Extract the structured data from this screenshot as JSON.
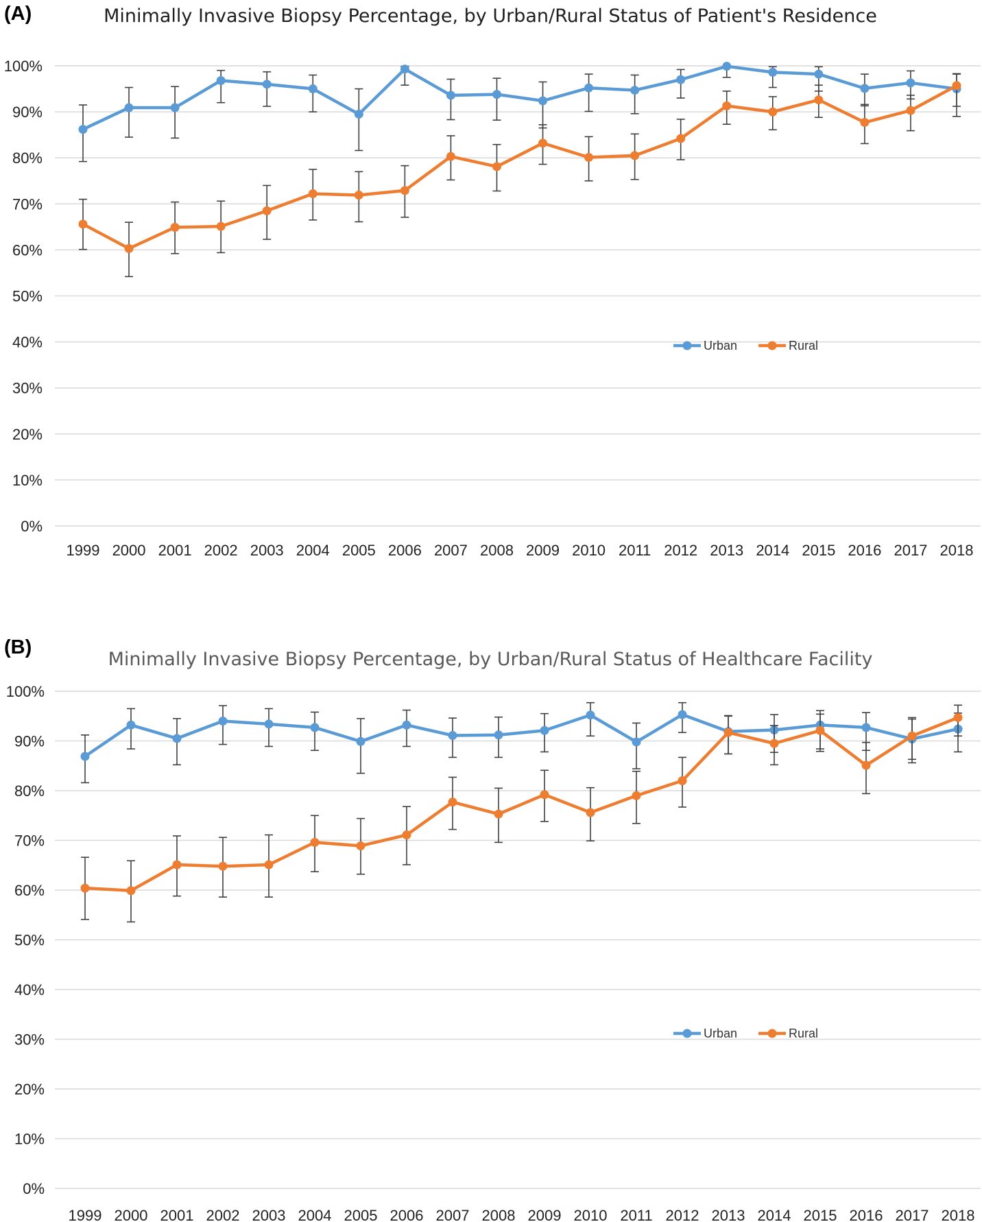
{
  "panels": {
    "a": {
      "label": "(A)",
      "title": "Minimally Invasive Biopsy Percentage, by Urban/Rural Status of Patient's Residence"
    },
    "b": {
      "label": "(B)",
      "title": "Minimally Invasive Biopsy Percentage, by Urban/Rural Status of Healthcare Facility"
    }
  },
  "chart_data": [
    {
      "type": "line",
      "title": "Minimally Invasive Biopsy Percentage, by Urban/Rural Status of Patient's Residence",
      "xlabel": "",
      "ylabel": "",
      "ylim": [
        0,
        100
      ],
      "y_ticks": [
        "0%",
        "10%",
        "20%",
        "30%",
        "40%",
        "50%",
        "60%",
        "70%",
        "80%",
        "90%",
        "100%"
      ],
      "categories": [
        "1999",
        "2000",
        "2001",
        "2002",
        "2003",
        "2004",
        "2005",
        "2006",
        "2007",
        "2008",
        "2009",
        "2010",
        "2011",
        "2012",
        "2013",
        "2014",
        "2015",
        "2016",
        "2017",
        "2018"
      ],
      "legend": "center-right",
      "grid": true,
      "series": [
        {
          "name": "Urban",
          "color": "#5B9BD5",
          "values": [
            86.2,
            90.9,
            90.9,
            96.8,
            96.0,
            95.0,
            89.5,
            99.3,
            93.6,
            93.8,
            92.4,
            95.2,
            94.7,
            97.0,
            99.9,
            98.6,
            98.2,
            95.1,
            96.3,
            95.0
          ],
          "error_low": [
            79.2,
            84.5,
            84.3,
            92.0,
            91.2,
            90.0,
            81.6,
            95.8,
            88.3,
            88.2,
            86.5,
            90.1,
            89.6,
            93.0,
            97.5,
            95.3,
            94.5,
            91.3,
            92.8,
            91.2
          ],
          "error_high": [
            91.5,
            95.3,
            95.5,
            99.0,
            98.7,
            98.0,
            95.0,
            99.9,
            97.1,
            97.3,
            96.5,
            98.2,
            98.0,
            99.2,
            100.0,
            99.8,
            99.8,
            98.2,
            98.9,
            98.2
          ]
        },
        {
          "name": "Rural",
          "color": "#ED7D31",
          "values": [
            65.6,
            60.3,
            64.9,
            65.1,
            68.5,
            72.2,
            71.9,
            72.9,
            80.3,
            78.1,
            83.2,
            80.1,
            80.5,
            84.2,
            91.3,
            90.0,
            92.6,
            87.7,
            90.3,
            95.7
          ],
          "error_low": [
            60.1,
            54.2,
            59.2,
            59.4,
            62.3,
            66.5,
            66.1,
            67.1,
            75.2,
            72.8,
            78.6,
            75.0,
            75.3,
            79.6,
            87.3,
            86.1,
            88.8,
            83.1,
            85.9,
            89.0
          ],
          "error_high": [
            71.0,
            66.0,
            70.4,
            70.6,
            74.0,
            77.5,
            77.0,
            78.3,
            84.8,
            82.9,
            87.2,
            84.6,
            85.2,
            88.4,
            94.5,
            93.3,
            95.8,
            91.6,
            93.6,
            98.3
          ]
        }
      ]
    },
    {
      "type": "line",
      "title": "Minimally Invasive Biopsy Percentage, by Urban/Rural Status of Healthcare Facility",
      "xlabel": "",
      "ylabel": "",
      "ylim": [
        0,
        100
      ],
      "y_ticks": [
        "0%",
        "10%",
        "20%",
        "30%",
        "40%",
        "50%",
        "60%",
        "70%",
        "80%",
        "90%",
        "100%"
      ],
      "categories": [
        "1999",
        "2000",
        "2001",
        "2002",
        "2003",
        "2004",
        "2005",
        "2006",
        "2007",
        "2008",
        "2009",
        "2010",
        "2011",
        "2012",
        "2013",
        "2014",
        "2015",
        "2016",
        "2017",
        "2018"
      ],
      "legend": "center-right",
      "grid": true,
      "series": [
        {
          "name": "Urban",
          "color": "#5B9BD5",
          "values": [
            86.9,
            93.2,
            90.5,
            94.0,
            93.4,
            92.7,
            89.9,
            93.2,
            91.1,
            91.2,
            92.1,
            95.2,
            89.8,
            95.3,
            91.9,
            92.2,
            93.2,
            92.7,
            90.4,
            92.4
          ],
          "error_low": [
            81.6,
            88.4,
            85.2,
            89.3,
            88.9,
            88.1,
            83.5,
            88.9,
            86.7,
            86.7,
            87.8,
            91.0,
            84.4,
            91.7,
            87.4,
            87.7,
            88.4,
            88.1,
            85.6,
            87.8
          ],
          "error_high": [
            91.2,
            96.5,
            94.5,
            97.1,
            96.5,
            95.8,
            94.5,
            96.2,
            94.6,
            94.8,
            95.5,
            97.7,
            93.6,
            97.7,
            95.1,
            95.3,
            96.1,
            95.7,
            94.7,
            95.6
          ]
        },
        {
          "name": "Rural",
          "color": "#ED7D31",
          "values": [
            60.4,
            59.9,
            65.1,
            64.8,
            65.1,
            69.6,
            68.9,
            71.1,
            77.7,
            75.3,
            79.2,
            75.6,
            79.0,
            82.0,
            91.7,
            89.5,
            92.1,
            85.1,
            91.0,
            94.7
          ],
          "error_low": [
            54.1,
            53.6,
            58.8,
            58.6,
            58.6,
            63.7,
            63.2,
            65.1,
            72.2,
            69.6,
            73.8,
            69.9,
            73.4,
            76.7,
            87.4,
            85.2,
            87.9,
            79.4,
            86.3,
            91.0
          ],
          "error_high": [
            66.6,
            65.9,
            70.9,
            70.6,
            71.1,
            75.0,
            74.4,
            76.8,
            82.7,
            80.5,
            84.1,
            80.6,
            83.9,
            86.7,
            95.0,
            93.1,
            95.4,
            89.7,
            94.4,
            97.2
          ]
        }
      ]
    }
  ]
}
